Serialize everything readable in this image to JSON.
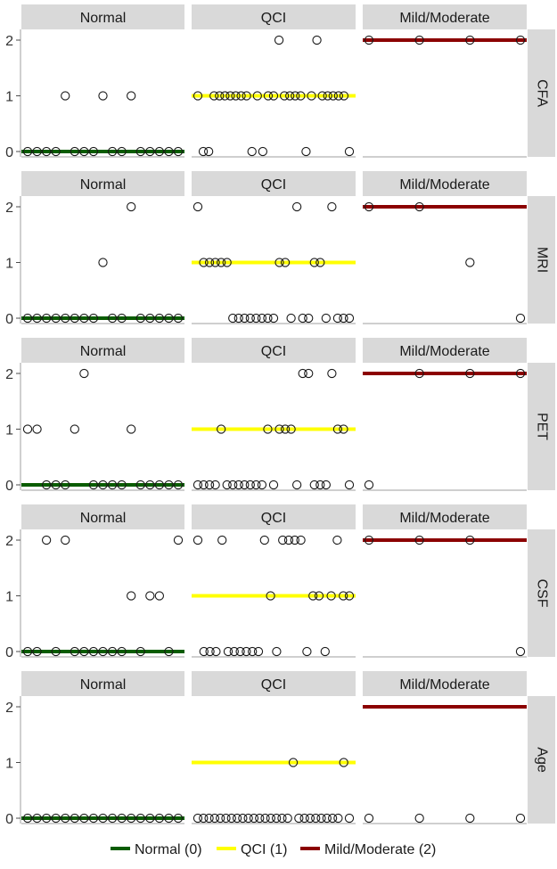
{
  "chart_data": {
    "type": "scatter",
    "columns": [
      "Normal",
      "QCI",
      "Mild/Moderate"
    ],
    "rows": [
      "CFA",
      "MRI",
      "PET",
      "CSF",
      "Age"
    ],
    "y_ticks": [
      "0",
      "1",
      "2"
    ],
    "ylim": [
      0,
      2
    ],
    "grid": false,
    "legend_position": "bottom",
    "legend": [
      {
        "label": "Normal (0)",
        "color": "#0a5c00",
        "value": 0
      },
      {
        "label": "QCI (1)",
        "color": "#ffff00",
        "value": 1
      },
      {
        "label": "Mild/Moderate (2)",
        "color": "#8b0000",
        "value": 2
      }
    ],
    "panels": [
      {
        "row": "CFA",
        "column": "Normal",
        "truth_line": 0,
        "points": [
          [
            1,
            0
          ],
          [
            2,
            0
          ],
          [
            3,
            0
          ],
          [
            4,
            0
          ],
          [
            5,
            1
          ],
          [
            6,
            0
          ],
          [
            7,
            0
          ],
          [
            8,
            0
          ],
          [
            9,
            1
          ],
          [
            10,
            0
          ],
          [
            11,
            0
          ],
          [
            12,
            1
          ],
          [
            13,
            0
          ],
          [
            14,
            0
          ],
          [
            15,
            0
          ],
          [
            16,
            0
          ],
          [
            17,
            0
          ]
        ]
      },
      {
        "row": "CFA",
        "column": "QCI",
        "truth_line": 1,
        "points": [
          [
            1,
            1
          ],
          [
            2,
            0
          ],
          [
            3,
            0
          ],
          [
            4,
            1
          ],
          [
            5,
            1
          ],
          [
            6,
            1
          ],
          [
            7,
            1
          ],
          [
            8,
            1
          ],
          [
            9,
            1
          ],
          [
            10,
            1
          ],
          [
            11,
            0
          ],
          [
            12,
            1
          ],
          [
            13,
            0
          ],
          [
            14,
            1
          ],
          [
            15,
            1
          ],
          [
            16,
            2
          ],
          [
            17,
            1
          ],
          [
            18,
            1
          ],
          [
            19,
            1
          ],
          [
            20,
            1
          ],
          [
            21,
            0
          ],
          [
            22,
            1
          ],
          [
            23,
            2
          ],
          [
            24,
            1
          ],
          [
            25,
            1
          ],
          [
            26,
            1
          ],
          [
            27,
            1
          ],
          [
            28,
            1
          ],
          [
            29,
            0
          ]
        ]
      },
      {
        "row": "CFA",
        "column": "Mild/Moderate",
        "truth_line": 2,
        "points": [
          [
            1,
            2
          ],
          [
            2,
            2
          ],
          [
            3,
            2
          ],
          [
            4,
            2
          ]
        ]
      },
      {
        "row": "MRI",
        "column": "Normal",
        "truth_line": 0,
        "points": [
          [
            1,
            0
          ],
          [
            2,
            0
          ],
          [
            3,
            0
          ],
          [
            4,
            0
          ],
          [
            5,
            0
          ],
          [
            6,
            0
          ],
          [
            7,
            0
          ],
          [
            8,
            0
          ],
          [
            9,
            1
          ],
          [
            10,
            0
          ],
          [
            11,
            0
          ],
          [
            12,
            2
          ],
          [
            13,
            0
          ],
          [
            14,
            0
          ],
          [
            15,
            0
          ],
          [
            16,
            0
          ],
          [
            17,
            0
          ]
        ]
      },
      {
        "row": "MRI",
        "column": "QCI",
        "truth_line": 1,
        "points": [
          [
            1,
            2
          ],
          [
            2,
            1
          ],
          [
            3,
            1
          ],
          [
            4,
            1
          ],
          [
            5,
            1
          ],
          [
            6,
            1
          ],
          [
            7,
            0
          ],
          [
            8,
            0
          ],
          [
            9,
            0
          ],
          [
            10,
            0
          ],
          [
            11,
            0
          ],
          [
            12,
            0
          ],
          [
            13,
            0
          ],
          [
            14,
            0
          ],
          [
            15,
            1
          ],
          [
            16,
            1
          ],
          [
            17,
            0
          ],
          [
            18,
            2
          ],
          [
            19,
            0
          ],
          [
            20,
            0
          ],
          [
            21,
            1
          ],
          [
            22,
            1
          ],
          [
            23,
            0
          ],
          [
            24,
            2
          ],
          [
            25,
            0
          ],
          [
            26,
            0
          ],
          [
            27,
            0
          ]
        ]
      },
      {
        "row": "MRI",
        "column": "Mild/Moderate",
        "truth_line": 2,
        "points": [
          [
            1,
            2
          ],
          [
            2,
            2
          ],
          [
            3,
            1
          ],
          [
            4,
            0
          ]
        ]
      },
      {
        "row": "PET",
        "column": "Normal",
        "truth_line": 0,
        "points": [
          [
            1,
            1
          ],
          [
            2,
            1
          ],
          [
            3,
            0
          ],
          [
            4,
            0
          ],
          [
            5,
            0
          ],
          [
            6,
            1
          ],
          [
            7,
            2
          ],
          [
            8,
            0
          ],
          [
            9,
            0
          ],
          [
            10,
            0
          ],
          [
            11,
            0
          ],
          [
            12,
            1
          ],
          [
            13,
            0
          ],
          [
            14,
            0
          ],
          [
            15,
            0
          ],
          [
            16,
            0
          ],
          [
            17,
            0
          ]
        ]
      },
      {
        "row": "PET",
        "column": "QCI",
        "truth_line": 1,
        "points": [
          [
            1,
            0
          ],
          [
            2,
            0
          ],
          [
            3,
            0
          ],
          [
            4,
            0
          ],
          [
            5,
            1
          ],
          [
            6,
            0
          ],
          [
            7,
            0
          ],
          [
            8,
            0
          ],
          [
            9,
            0
          ],
          [
            10,
            0
          ],
          [
            11,
            0
          ],
          [
            12,
            0
          ],
          [
            13,
            1
          ],
          [
            14,
            0
          ],
          [
            15,
            1
          ],
          [
            16,
            1
          ],
          [
            17,
            1
          ],
          [
            18,
            0
          ],
          [
            19,
            2
          ],
          [
            20,
            2
          ],
          [
            21,
            0
          ],
          [
            22,
            0
          ],
          [
            23,
            0
          ],
          [
            24,
            2
          ],
          [
            25,
            1
          ],
          [
            26,
            1
          ],
          [
            27,
            0
          ]
        ]
      },
      {
        "row": "PET",
        "column": "Mild/Moderate",
        "truth_line": 2,
        "points": [
          [
            1,
            0
          ],
          [
            2,
            2
          ],
          [
            3,
            2
          ],
          [
            4,
            2
          ]
        ]
      },
      {
        "row": "CSF",
        "column": "Normal",
        "truth_line": 0,
        "points": [
          [
            1,
            0
          ],
          [
            2,
            0
          ],
          [
            3,
            2
          ],
          [
            4,
            0
          ],
          [
            5,
            2
          ],
          [
            6,
            0
          ],
          [
            7,
            0
          ],
          [
            8,
            0
          ],
          [
            9,
            0
          ],
          [
            10,
            0
          ],
          [
            11,
            0
          ],
          [
            12,
            1
          ],
          [
            13,
            0
          ],
          [
            14,
            1
          ],
          [
            15,
            1
          ],
          [
            16,
            0
          ],
          [
            17,
            2
          ]
        ]
      },
      {
        "row": "CSF",
        "column": "QCI",
        "truth_line": 1,
        "points": [
          [
            1,
            2
          ],
          [
            2,
            0
          ],
          [
            3,
            0
          ],
          [
            4,
            0
          ],
          [
            5,
            2
          ],
          [
            6,
            0
          ],
          [
            7,
            0
          ],
          [
            8,
            0
          ],
          [
            9,
            0
          ],
          [
            10,
            0
          ],
          [
            11,
            0
          ],
          [
            12,
            2
          ],
          [
            13,
            1
          ],
          [
            14,
            0
          ],
          [
            15,
            2
          ],
          [
            16,
            2
          ],
          [
            17,
            2
          ],
          [
            18,
            2
          ],
          [
            19,
            0
          ],
          [
            20,
            1
          ],
          [
            21,
            1
          ],
          [
            22,
            0
          ],
          [
            23,
            1
          ],
          [
            24,
            2
          ],
          [
            25,
            1
          ],
          [
            26,
            1
          ]
        ]
      },
      {
        "row": "CSF",
        "column": "Mild/Moderate",
        "truth_line": 2,
        "points": [
          [
            1,
            2
          ],
          [
            2,
            2
          ],
          [
            3,
            2
          ],
          [
            4,
            0
          ]
        ]
      },
      {
        "row": "Age",
        "column": "Normal",
        "truth_line": 0,
        "points": [
          [
            1,
            0
          ],
          [
            2,
            0
          ],
          [
            3,
            0
          ],
          [
            4,
            0
          ],
          [
            5,
            0
          ],
          [
            6,
            0
          ],
          [
            7,
            0
          ],
          [
            8,
            0
          ],
          [
            9,
            0
          ],
          [
            10,
            0
          ],
          [
            11,
            0
          ],
          [
            12,
            0
          ],
          [
            13,
            0
          ],
          [
            14,
            0
          ],
          [
            15,
            0
          ],
          [
            16,
            0
          ],
          [
            17,
            0
          ]
        ]
      },
      {
        "row": "Age",
        "column": "QCI",
        "truth_line": 1,
        "points": [
          [
            1,
            0
          ],
          [
            2,
            0
          ],
          [
            3,
            0
          ],
          [
            4,
            0
          ],
          [
            5,
            0
          ],
          [
            6,
            0
          ],
          [
            7,
            0
          ],
          [
            8,
            0
          ],
          [
            9,
            0
          ],
          [
            10,
            0
          ],
          [
            11,
            0
          ],
          [
            12,
            0
          ],
          [
            13,
            0
          ],
          [
            14,
            0
          ],
          [
            15,
            0
          ],
          [
            16,
            0
          ],
          [
            17,
            0
          ],
          [
            18,
            1
          ],
          [
            19,
            0
          ],
          [
            20,
            0
          ],
          [
            21,
            0
          ],
          [
            22,
            0
          ],
          [
            23,
            0
          ],
          [
            24,
            0
          ],
          [
            25,
            0
          ],
          [
            26,
            0
          ],
          [
            27,
            1
          ],
          [
            28,
            0
          ]
        ]
      },
      {
        "row": "Age",
        "column": "Mild/Moderate",
        "truth_line": 2,
        "points": [
          [
            1,
            0
          ],
          [
            2,
            0
          ],
          [
            3,
            0
          ],
          [
            4,
            0
          ]
        ]
      }
    ]
  }
}
